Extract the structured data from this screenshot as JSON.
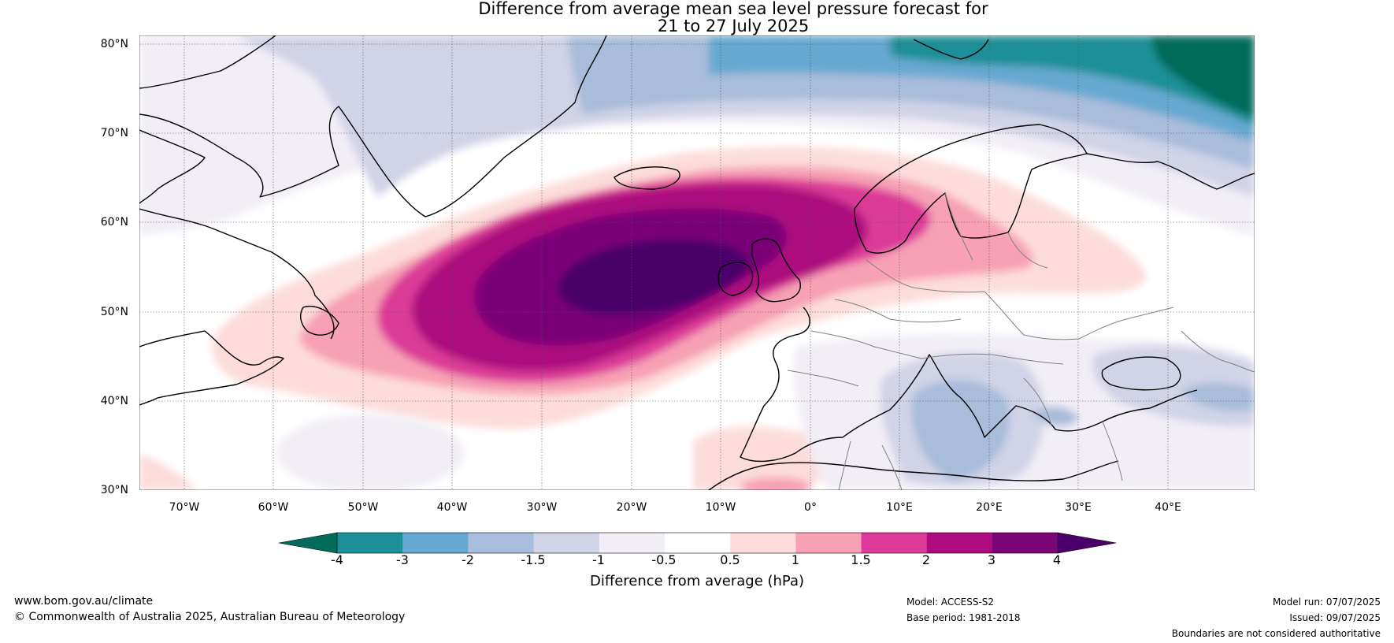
{
  "title_line1": "Difference from average mean sea level pressure forecast for",
  "title_line2": "21 to 27 July 2025",
  "lat_labels": [
    "80°N",
    "70°N",
    "60°N",
    "50°N",
    "40°N",
    "30°N"
  ],
  "lon_labels": [
    "70°W",
    "60°W",
    "50°W",
    "40°W",
    "30°W",
    "20°W",
    "10°W",
    "0°",
    "10°E",
    "20°E",
    "30°E",
    "40°E"
  ],
  "colorbar": {
    "ticks": [
      "-4",
      "-3",
      "-2",
      "-1.5",
      "-1",
      "-0.5",
      "0.5",
      "1",
      "1.5",
      "2",
      "3",
      "4"
    ],
    "colors": [
      "#026c5a",
      "#1d8f98",
      "#66a8d0",
      "#a8bcdb",
      "#d1d3e6",
      "#f2eef6",
      "#ffffff",
      "#fddbdb",
      "#f7a0b6",
      "#dc3a98",
      "#ad0b7e",
      "#7a0678",
      "#4a006a"
    ],
    "label": "Difference from average (hPa)"
  },
  "footer": {
    "website": "www.bom.gov.au/climate",
    "copyright": "© Commonwealth of Australia 2025, Australian Bureau of Meteorology",
    "model": "Model: ACCESS-S2",
    "base_period": "Base period: 1981-2018",
    "model_run": "Model run: 07/07/2025",
    "issued": "Issued: 09/07/2025",
    "disclaimer": "Boundaries are not considered authoritative"
  }
}
